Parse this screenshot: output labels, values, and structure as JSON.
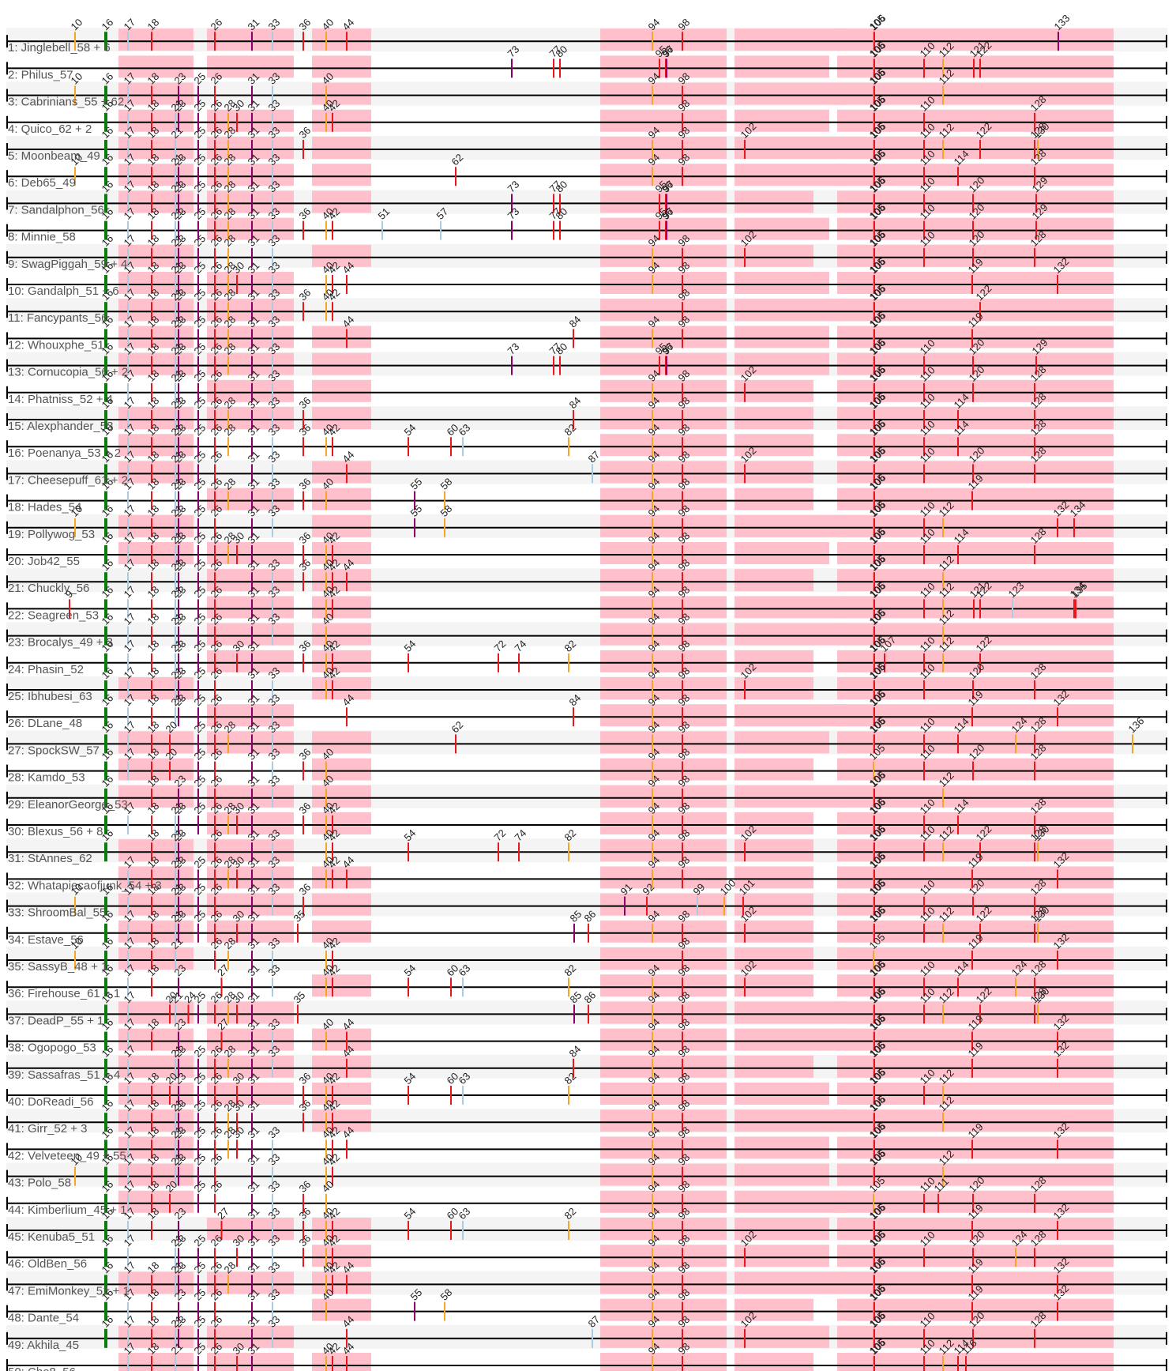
{
  "colors": {
    "band": "#f4f4f4",
    "segment": "#ffc0cb",
    "line": "#000000",
    "marker_red": "#e8171e",
    "marker_purple": "#8b0068",
    "marker_orange": "#f5a623",
    "marker_lightblue": "#a9cce3",
    "marker_green": "#0a7d0a",
    "marker_yellow": "#f7ea12"
  },
  "rows": [
    {
      "label": "1: Jinglebell_58 + 6",
      "ticks": [
        10,
        16,
        17,
        18,
        26,
        31,
        33,
        36,
        40,
        44,
        94,
        98,
        105,
        106,
        133
      ]
    },
    {
      "label": "2: Philus_57",
      "ticks": [
        73,
        77,
        80,
        95,
        96,
        97,
        105,
        106,
        110,
        112,
        121,
        122
      ]
    },
    {
      "label": "3: Cabrinians_55 + 62",
      "ticks": [
        10,
        16,
        17,
        18,
        23,
        25,
        26,
        31,
        33,
        40,
        94,
        98,
        105,
        106,
        112
      ]
    },
    {
      "label": "4: Quico_62 + 2",
      "ticks": [
        16,
        17,
        18,
        21,
        23,
        25,
        26,
        28,
        30,
        31,
        33,
        40,
        42,
        98,
        105,
        106,
        110,
        128
      ]
    },
    {
      "label": "5: Moonbeam_49",
      "ticks": [
        16,
        17,
        18,
        21,
        25,
        26,
        28,
        31,
        33,
        36,
        94,
        98,
        102,
        105,
        106,
        110,
        112,
        122,
        128,
        130
      ]
    },
    {
      "label": "6: Deb65_49",
      "ticks": [
        10,
        16,
        17,
        18,
        21,
        23,
        25,
        26,
        28,
        31,
        33,
        62,
        94,
        98,
        105,
        106,
        110,
        114,
        128
      ]
    },
    {
      "label": "7: Sandalphon_56",
      "ticks": [
        16,
        17,
        18,
        21,
        23,
        25,
        26,
        28,
        31,
        33,
        73,
        77,
        80,
        95,
        96,
        97,
        105,
        106,
        110,
        120,
        129
      ]
    },
    {
      "label": "8: Minnie_58",
      "ticks": [
        16,
        17,
        18,
        21,
        23,
        25,
        26,
        28,
        31,
        33,
        36,
        40,
        42,
        51,
        57,
        73,
        77,
        80,
        95,
        96,
        97,
        105,
        106,
        110,
        120,
        129
      ]
    },
    {
      "label": "9: SwagPiggah_59 + 4",
      "ticks": [
        16,
        17,
        18,
        21,
        23,
        25,
        26,
        28,
        31,
        33,
        94,
        98,
        102,
        105,
        106,
        110,
        120,
        128
      ]
    },
    {
      "label": "10: Gandalph_51 + 6",
      "ticks": [
        16,
        17,
        18,
        21,
        23,
        25,
        26,
        28,
        30,
        31,
        33,
        40,
        42,
        44,
        94,
        98,
        105,
        106,
        119,
        132
      ]
    },
    {
      "label": "11: Fancypants_56",
      "ticks": [
        16,
        17,
        18,
        21,
        23,
        25,
        26,
        28,
        31,
        33,
        36,
        40,
        42,
        98,
        105,
        106,
        122
      ]
    },
    {
      "label": "12: Whouxphe_51",
      "ticks": [
        16,
        17,
        18,
        21,
        23,
        25,
        26,
        28,
        31,
        33,
        44,
        84,
        94,
        98,
        105,
        106,
        119
      ]
    },
    {
      "label": "13: Cornucopia_56 + 2",
      "ticks": [
        16,
        17,
        18,
        21,
        23,
        25,
        26,
        28,
        31,
        33,
        73,
        77,
        80,
        95,
        96,
        97,
        105,
        106,
        110,
        120,
        129
      ]
    },
    {
      "label": "14: Phatniss_52 + 4",
      "ticks": [
        16,
        17,
        18,
        21,
        23,
        25,
        26,
        31,
        33,
        94,
        98,
        102,
        105,
        106,
        110,
        120,
        128
      ]
    },
    {
      "label": "15: Alexphander_53",
      "ticks": [
        16,
        17,
        18,
        21,
        23,
        25,
        26,
        28,
        31,
        33,
        36,
        84,
        94,
        98,
        105,
        106,
        110,
        114,
        128
      ]
    },
    {
      "label": "16: Poenanya_53 + 2",
      "ticks": [
        16,
        17,
        18,
        21,
        23,
        25,
        26,
        28,
        31,
        33,
        36,
        40,
        42,
        54,
        60,
        63,
        82,
        94,
        98,
        105,
        106,
        110,
        114,
        128
      ]
    },
    {
      "label": "17: Cheesepuff_61 + 2",
      "ticks": [
        16,
        17,
        18,
        21,
        23,
        25,
        26,
        31,
        33,
        44,
        87,
        94,
        98,
        102,
        105,
        106,
        110,
        120,
        128
      ]
    },
    {
      "label": "18: Hades_54",
      "ticks": [
        16,
        17,
        18,
        21,
        23,
        25,
        26,
        28,
        31,
        33,
        36,
        40,
        55,
        58,
        94,
        98,
        105,
        106,
        119
      ]
    },
    {
      "label": "19: Pollywog_53",
      "ticks": [
        10,
        16,
        17,
        18,
        21,
        23,
        25,
        26,
        31,
        33,
        55,
        58,
        94,
        98,
        105,
        106,
        110,
        112,
        132,
        134
      ]
    },
    {
      "label": "20: Job42_55",
      "ticks": [
        16,
        17,
        18,
        21,
        23,
        25,
        26,
        28,
        30,
        31,
        36,
        40,
        42,
        94,
        98,
        105,
        106,
        110,
        114,
        128
      ]
    },
    {
      "label": "21: Chuckly_56",
      "ticks": [
        16,
        17,
        18,
        21,
        23,
        25,
        26,
        31,
        33,
        36,
        40,
        42,
        44,
        94,
        98,
        105,
        106,
        112
      ]
    },
    {
      "label": "22: Seagreen_53",
      "ticks": [
        9,
        16,
        17,
        18,
        21,
        23,
        25,
        26,
        31,
        33,
        40,
        42,
        94,
        98,
        105,
        106,
        110,
        112,
        121,
        122,
        123,
        134,
        135
      ]
    },
    {
      "label": "23: Brocalys_49 + 3",
      "ticks": [
        16,
        17,
        18,
        21,
        23,
        25,
        26,
        31,
        33,
        40,
        94,
        98,
        105,
        106,
        112
      ]
    },
    {
      "label": "24: Phasin_52",
      "ticks": [
        16,
        17,
        18,
        21,
        23,
        25,
        26,
        30,
        31,
        36,
        40,
        42,
        54,
        72,
        74,
        82,
        94,
        98,
        105,
        106,
        107,
        110,
        112,
        122
      ]
    },
    {
      "label": "25: Ibhubesi_63",
      "ticks": [
        16,
        17,
        18,
        21,
        23,
        25,
        26,
        31,
        33,
        40,
        42,
        94,
        98,
        102,
        105,
        106,
        110,
        120,
        128
      ]
    },
    {
      "label": "26: DLane_48",
      "ticks": [
        16,
        17,
        18,
        21,
        23,
        25,
        26,
        31,
        33,
        44,
        84,
        94,
        98,
        105,
        106,
        119,
        132
      ]
    },
    {
      "label": "27: SpockSW_57",
      "ticks": [
        16,
        17,
        18,
        20,
        25,
        26,
        28,
        31,
        33,
        62,
        94,
        98,
        105,
        106,
        110,
        114,
        124,
        128,
        136
      ]
    },
    {
      "label": "28: Kamdo_53",
      "ticks": [
        16,
        17,
        18,
        20,
        25,
        26,
        31,
        33,
        36,
        40,
        94,
        98,
        105,
        110,
        120,
        128
      ]
    },
    {
      "label": "29: EleanorGeorge_53",
      "ticks": [
        16,
        18,
        23,
        25,
        26,
        31,
        33,
        40,
        94,
        98,
        105,
        106,
        112
      ]
    },
    {
      "label": "30: Blexus_56 + 8",
      "ticks": [
        16,
        17,
        18,
        21,
        23,
        25,
        26,
        28,
        30,
        31,
        36,
        40,
        42,
        94,
        98,
        105,
        106,
        110,
        114,
        128
      ]
    },
    {
      "label": "31: StAnnes_62",
      "ticks": [
        16,
        18,
        21,
        23,
        26,
        31,
        33,
        40,
        42,
        54,
        72,
        74,
        82,
        94,
        98,
        102,
        105,
        106,
        110,
        112,
        122,
        128,
        130
      ]
    },
    {
      "label": "32: Whatapiecaofjunk_54 + 3",
      "ticks": [
        17,
        18,
        21,
        23,
        25,
        26,
        28,
        30,
        31,
        33,
        40,
        42,
        44,
        94,
        98,
        105,
        106,
        119,
        132
      ]
    },
    {
      "label": "33: ShroomBal_55",
      "ticks": [
        10,
        16,
        17,
        18,
        21,
        23,
        25,
        26,
        31,
        33,
        36,
        91,
        92,
        99,
        100,
        101,
        105,
        106,
        110,
        120,
        128
      ]
    },
    {
      "label": "34: Estave_56",
      "ticks": [
        16,
        17,
        18,
        21,
        23,
        25,
        26,
        30,
        31,
        35,
        85,
        86,
        94,
        98,
        102,
        105,
        106,
        110,
        112,
        122,
        128,
        130
      ]
    },
    {
      "label": "35: SassyB_48 + 1",
      "ticks": [
        10,
        16,
        17,
        18,
        21,
        26,
        28,
        31,
        33,
        40,
        42,
        98,
        105,
        119,
        132
      ]
    },
    {
      "label": "36: Firehouse_61 + 1",
      "ticks": [
        16,
        17,
        18,
        23,
        27,
        31,
        33,
        40,
        42,
        54,
        60,
        63,
        82,
        94,
        98,
        102,
        105,
        106,
        110,
        114,
        124,
        128
      ]
    },
    {
      "label": "37: DeadP_55 + 1",
      "ticks": [
        16,
        17,
        20,
        21,
        24,
        25,
        26,
        28,
        30,
        31,
        35,
        85,
        86,
        94,
        98,
        105,
        106,
        110,
        112,
        122,
        128,
        130
      ]
    },
    {
      "label": "38: Ogopogo_53",
      "ticks": [
        16,
        17,
        18,
        23,
        27,
        31,
        33,
        40,
        44,
        94,
        98,
        105,
        106,
        119,
        132
      ]
    },
    {
      "label": "39: Sassafras_51 + 4",
      "ticks": [
        16,
        17,
        21,
        23,
        25,
        26,
        28,
        31,
        33,
        44,
        84,
        94,
        98,
        105,
        106,
        119,
        132
      ]
    },
    {
      "label": "40: DoReadi_56",
      "ticks": [
        16,
        17,
        18,
        20,
        23,
        25,
        26,
        30,
        31,
        36,
        40,
        42,
        54,
        60,
        63,
        82,
        94,
        98,
        105,
        106,
        110,
        112
      ]
    },
    {
      "label": "41: Girr_52 + 3",
      "ticks": [
        16,
        17,
        18,
        21,
        23,
        25,
        26,
        28,
        30,
        31,
        36,
        40,
        42,
        94,
        98,
        105,
        106,
        112
      ]
    },
    {
      "label": "42: Velveteen_49 + 55",
      "ticks": [
        16,
        17,
        18,
        21,
        23,
        25,
        26,
        28,
        30,
        31,
        33,
        40,
        42,
        44,
        94,
        98,
        105,
        106,
        119,
        132
      ]
    },
    {
      "label": "43: Polo_58",
      "ticks": [
        10,
        16,
        17,
        18,
        21,
        23,
        25,
        26,
        31,
        33,
        40,
        42,
        94,
        98,
        105,
        106,
        112
      ]
    },
    {
      "label": "44: Kimberlium_45 + 1",
      "ticks": [
        16,
        17,
        18,
        20,
        25,
        26,
        31,
        33,
        36,
        40,
        94,
        98,
        105,
        110,
        111,
        120,
        128
      ]
    },
    {
      "label": "45: Kenuba5_51",
      "ticks": [
        16,
        17,
        18,
        23,
        27,
        31,
        33,
        36,
        40,
        42,
        54,
        60,
        63,
        82,
        94,
        98,
        105,
        106,
        119,
        132
      ]
    },
    {
      "label": "46: OldBen_56",
      "ticks": [
        16,
        17,
        21,
        23,
        25,
        26,
        30,
        31,
        33,
        36,
        40,
        42,
        94,
        98,
        102,
        105,
        106,
        110,
        120,
        124,
        128
      ]
    },
    {
      "label": "47: EmiMonkey_51 + 1",
      "ticks": [
        16,
        17,
        18,
        21,
        23,
        25,
        26,
        28,
        31,
        33,
        40,
        42,
        44,
        94,
        98,
        105,
        106,
        119,
        132
      ]
    },
    {
      "label": "48: Dante_54",
      "ticks": [
        16,
        17,
        18,
        23,
        25,
        26,
        31,
        33,
        40,
        55,
        58,
        94,
        98,
        105,
        106,
        119,
        132
      ]
    },
    {
      "label": "49: Akhila_45",
      "ticks": [
        16,
        17,
        18,
        21,
        23,
        25,
        26,
        31,
        33,
        44,
        87,
        94,
        98,
        102,
        105,
        106,
        110,
        120,
        128
      ]
    },
    {
      "label": "50: Che8_56",
      "ticks": [
        17,
        18,
        21,
        25,
        26,
        30,
        31,
        40,
        42,
        44,
        94,
        98,
        105,
        106,
        110,
        112,
        114,
        116
      ]
    }
  ]
}
